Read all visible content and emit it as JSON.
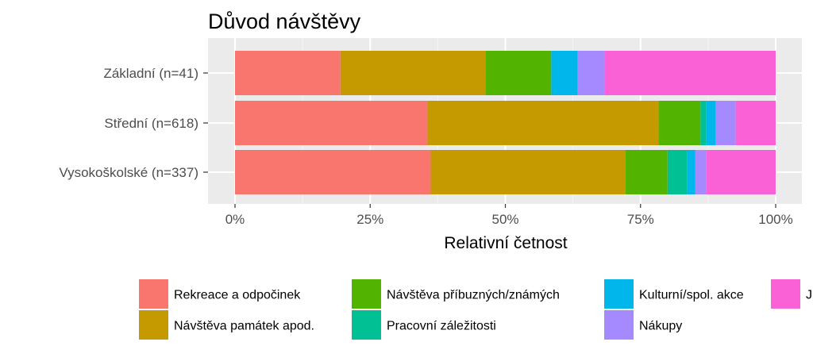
{
  "chart_data": {
    "type": "bar",
    "orientation": "horizontal",
    "stacked": "percent",
    "title": "Důvod návštěvy",
    "xlabel": "Relativní četnost",
    "ylabel": "",
    "xlim": [
      0,
      1
    ],
    "x_ticks": [
      {
        "value": 0,
        "label": "0%"
      },
      {
        "value": 0.25,
        "label": "25%"
      },
      {
        "value": 0.5,
        "label": "50%"
      },
      {
        "value": 0.75,
        "label": "75%"
      },
      {
        "value": 1,
        "label": "100%"
      }
    ],
    "grid": true,
    "legend_position": "bottom",
    "categories": [
      "Základní (n=41)",
      "Střední (n=618)",
      "Vysokoškolské (n=337)"
    ],
    "series": [
      {
        "name": "Rekreace a odpočinek",
        "color": "#F8766D",
        "values": [
          0.195,
          0.356,
          0.362
        ]
      },
      {
        "name": "Návštěva památek apod.",
        "color": "#C49A00",
        "values": [
          0.268,
          0.427,
          0.36
        ]
      },
      {
        "name": "Návštěva příbuzných/známých",
        "color": "#53B400",
        "values": [
          0.122,
          0.078,
          0.078
        ]
      },
      {
        "name": "Pracovní záležitosti",
        "color": "#00C094",
        "values": [
          0.0,
          0.01,
          0.036
        ]
      },
      {
        "name": "Kulturní/spol. akce",
        "color": "#00B6EB",
        "values": [
          0.049,
          0.018,
          0.015
        ]
      },
      {
        "name": "Nákupy",
        "color": "#A58AFF",
        "values": [
          0.049,
          0.037,
          0.02
        ]
      },
      {
        "name": "J",
        "color": "#FB61D7",
        "values": [
          0.317,
          0.074,
          0.129
        ]
      }
    ]
  }
}
